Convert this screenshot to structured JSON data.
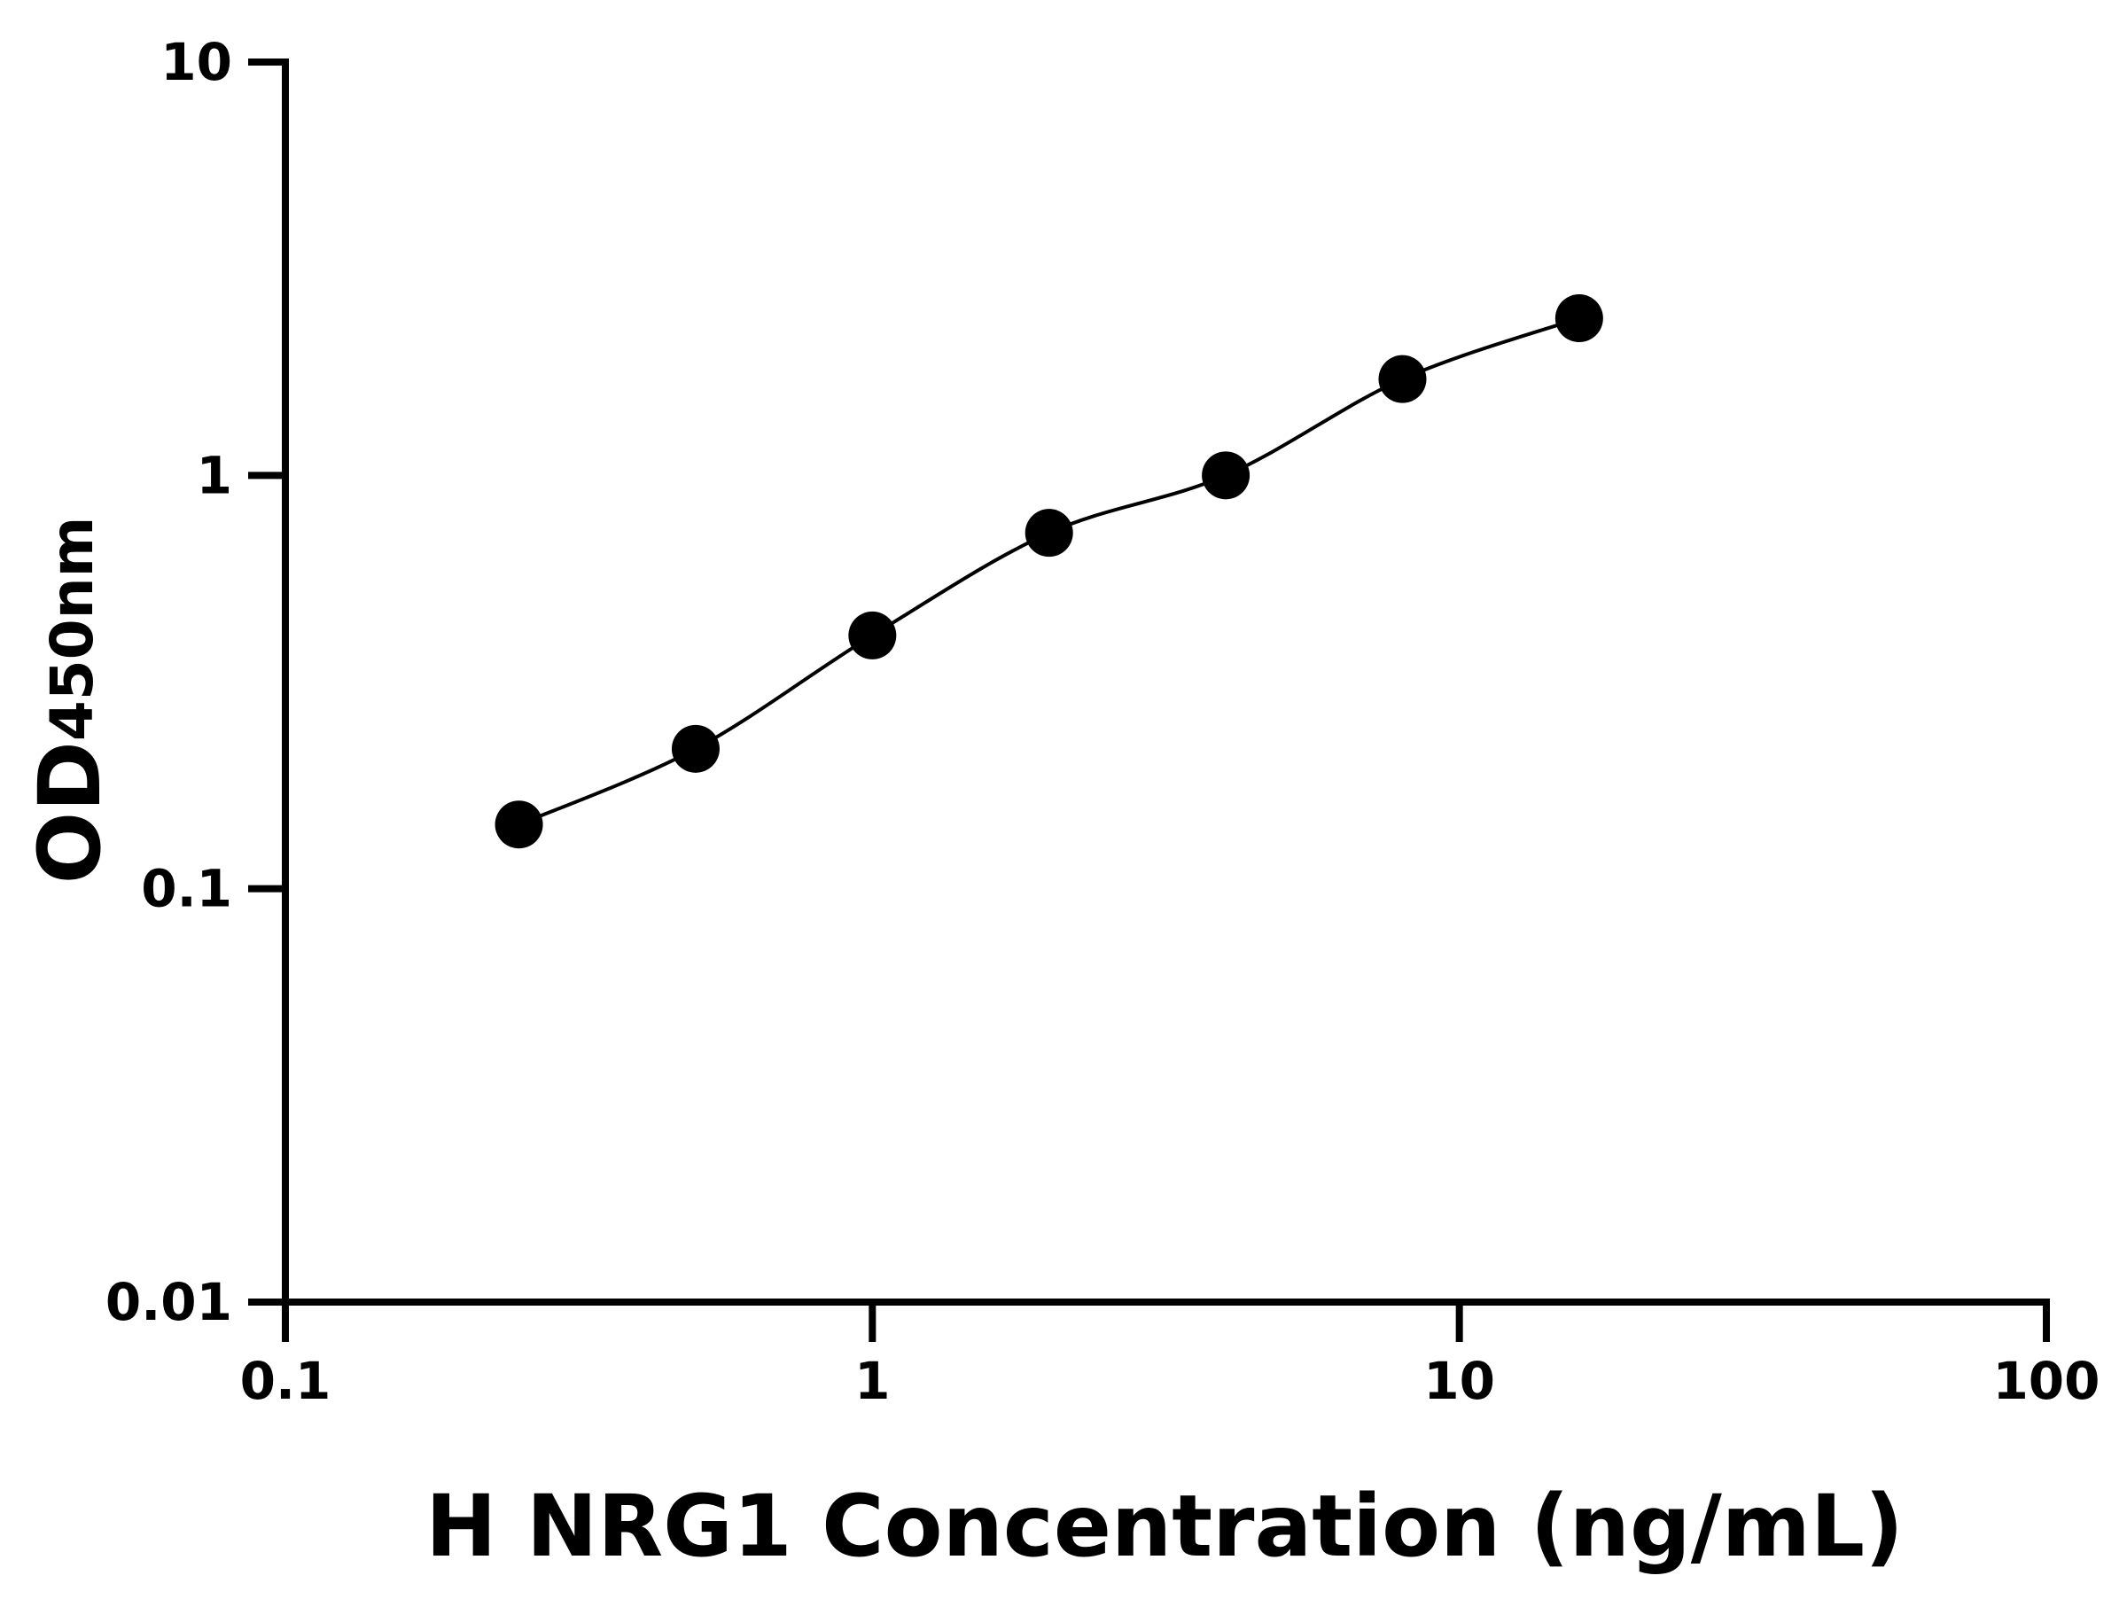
{
  "chart_data": {
    "type": "scatter",
    "xlabel": "H NRG1 Concentration (ng/mL)",
    "ylabel": "OD",
    "ylabel_subscript": "450nm",
    "x": [
      0.25,
      0.5,
      1,
      2,
      4,
      8,
      16
    ],
    "series": [
      {
        "color": "#000000",
        "values": [
          0.143,
          0.218,
          0.41,
          0.726,
          1.0,
          1.71,
          2.4
        ]
      }
    ],
    "xlog": true,
    "ylog": true,
    "xlim": [
      0.1,
      100
    ],
    "ylim": [
      0.01,
      10
    ],
    "xticks": [
      0.1,
      1,
      10,
      100
    ],
    "yticks": [
      0.01,
      0.1,
      1,
      10
    ],
    "fit_line": true
  }
}
